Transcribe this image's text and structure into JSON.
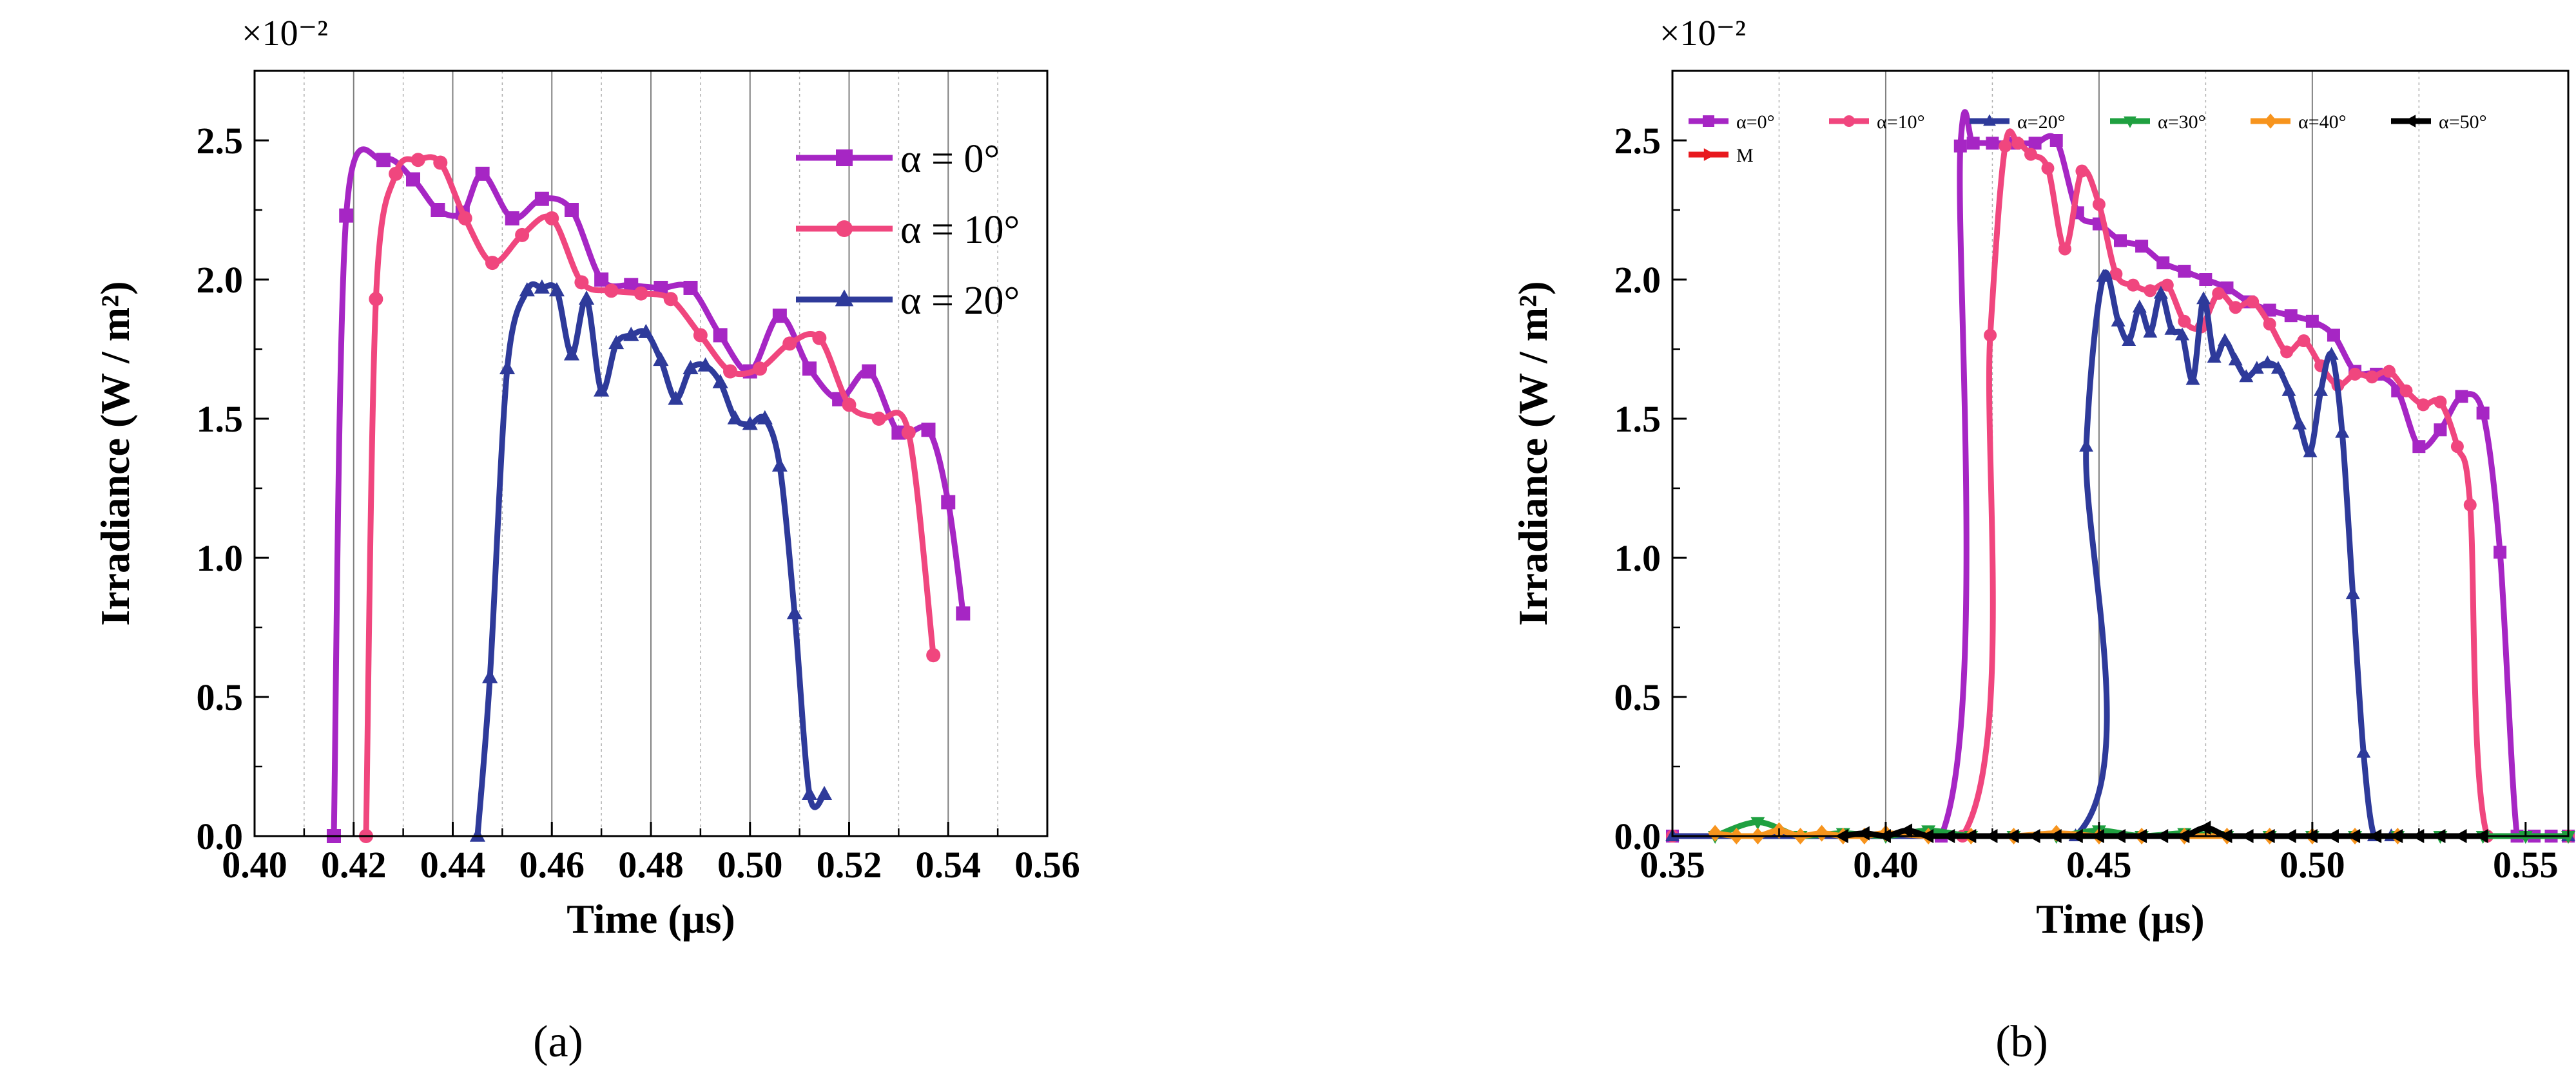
{
  "figure": {
    "caption_a": "(a)",
    "caption_b": "(b)"
  },
  "chart_data": [
    {
      "id": "a",
      "type": "line",
      "title": "",
      "xlabel": "Time (µs)",
      "ylabel": "Irradiance (W / m²)",
      "y_multiplier": "×10⁻²",
      "xlim": [
        0.4,
        0.56
      ],
      "ylim": [
        0,
        2.75
      ],
      "xticks": [
        "0.40",
        "0.42",
        "0.44",
        "0.46",
        "0.48",
        "0.50",
        "0.52",
        "0.54",
        "0.56"
      ],
      "yticks": [
        "0.0",
        "0.5",
        "1.0",
        "1.5",
        "2.0",
        "2.5"
      ],
      "grid": "vertical",
      "legend_position": "top-right",
      "series": [
        {
          "name": "α = 0°",
          "color": "#a626c4",
          "marker": "square",
          "x": [
            0.416,
            0.4185,
            0.426,
            0.432,
            0.437,
            0.442,
            0.446,
            0.452,
            0.458,
            0.464,
            0.47,
            0.476,
            0.482,
            0.488,
            0.494,
            0.5,
            0.506,
            0.512,
            0.518,
            0.524,
            0.53,
            0.536,
            0.54,
            0.543
          ],
          "values": [
            0.0,
            2.23,
            2.43,
            2.36,
            2.25,
            2.24,
            2.38,
            2.22,
            2.29,
            2.25,
            2.0,
            1.98,
            1.97,
            1.97,
            1.8,
            1.67,
            1.87,
            1.68,
            1.57,
            1.67,
            1.45,
            1.46,
            1.2,
            0.8
          ]
        },
        {
          "name": "α = 10°",
          "color": "#f0467e",
          "marker": "circle",
          "x": [
            0.4225,
            0.4245,
            0.4285,
            0.433,
            0.4375,
            0.4425,
            0.448,
            0.454,
            0.46,
            0.466,
            0.472,
            0.478,
            0.484,
            0.49,
            0.496,
            0.502,
            0.508,
            0.514,
            0.52,
            0.526,
            0.532,
            0.537
          ],
          "values": [
            0.0,
            1.93,
            2.38,
            2.43,
            2.42,
            2.22,
            2.06,
            2.16,
            2.22,
            1.99,
            1.96,
            1.95,
            1.93,
            1.8,
            1.67,
            1.68,
            1.77,
            1.79,
            1.55,
            1.5,
            1.45,
            0.65
          ]
        },
        {
          "name": "α = 20°",
          "color": "#2e3a9a",
          "marker": "triangle",
          "x": [
            0.445,
            0.4475,
            0.451,
            0.455,
            0.458,
            0.461,
            0.464,
            0.467,
            0.47,
            0.473,
            0.476,
            0.479,
            0.482,
            0.485,
            0.488,
            0.491,
            0.494,
            0.497,
            0.5,
            0.503,
            0.506,
            0.509,
            0.512,
            0.515
          ],
          "values": [
            0.0,
            0.57,
            1.68,
            1.96,
            1.97,
            1.96,
            1.73,
            1.93,
            1.6,
            1.77,
            1.8,
            1.81,
            1.71,
            1.57,
            1.68,
            1.69,
            1.63,
            1.5,
            1.48,
            1.5,
            1.33,
            0.8,
            0.15,
            0.15
          ]
        }
      ]
    },
    {
      "id": "b",
      "type": "line",
      "title": "",
      "xlabel": "Time (µs)",
      "ylabel": "Irradiance (W / m²)",
      "y_multiplier": "×10⁻²",
      "xlim": [
        0.35,
        0.56
      ],
      "ylim": [
        0,
        2.75
      ],
      "xticks": [
        "0.35",
        "0.40",
        "0.45",
        "0.50",
        "0.55"
      ],
      "yticks": [
        "0.0",
        "0.5",
        "1.0",
        "1.5",
        "2.0",
        "2.5"
      ],
      "grid": "vertical",
      "legend_position": "top",
      "series": [
        {
          "name": "α=0°",
          "color": "#a626c4",
          "marker": "square",
          "x": [
            0.35,
            0.413,
            0.4175,
            0.4205,
            0.425,
            0.43,
            0.435,
            0.44,
            0.445,
            0.45,
            0.455,
            0.46,
            0.465,
            0.47,
            0.475,
            0.48,
            0.485,
            0.49,
            0.495,
            0.5,
            0.505,
            0.51,
            0.515,
            0.52,
            0.525,
            0.53,
            0.535,
            0.54,
            0.544,
            0.548,
            0.552,
            0.556,
            0.56
          ],
          "values": [
            0.0,
            0.0,
            2.48,
            2.49,
            2.49,
            2.49,
            2.49,
            2.5,
            2.24,
            2.2,
            2.14,
            2.12,
            2.06,
            2.03,
            2.0,
            1.97,
            1.92,
            1.89,
            1.87,
            1.85,
            1.8,
            1.67,
            1.66,
            1.6,
            1.4,
            1.46,
            1.58,
            1.52,
            1.02,
            0.0,
            0.0,
            0.0,
            0.0
          ]
        },
        {
          "name": "α=10°",
          "color": "#f0467e",
          "marker": "circle",
          "x": [
            0.35,
            0.418,
            0.4245,
            0.428,
            0.431,
            0.434,
            0.438,
            0.442,
            0.446,
            0.45,
            0.454,
            0.458,
            0.462,
            0.466,
            0.47,
            0.474,
            0.478,
            0.482,
            0.486,
            0.49,
            0.494,
            0.498,
            0.502,
            0.506,
            0.51,
            0.514,
            0.518,
            0.522,
            0.526,
            0.53,
            0.534,
            0.537,
            0.541,
            0.56
          ],
          "values": [
            0.0,
            0.0,
            1.8,
            2.48,
            2.49,
            2.45,
            2.4,
            2.11,
            2.39,
            2.27,
            2.02,
            1.98,
            1.96,
            1.98,
            1.85,
            1.83,
            1.95,
            1.9,
            1.92,
            1.84,
            1.74,
            1.78,
            1.69,
            1.62,
            1.66,
            1.65,
            1.67,
            1.6,
            1.55,
            1.56,
            1.4,
            1.19,
            0.0,
            0.0
          ]
        },
        {
          "name": "α=20°",
          "color": "#2e3a9a",
          "marker": "triangle",
          "x": [
            0.35,
            0.4445,
            0.447,
            0.451,
            0.4545,
            0.457,
            0.4595,
            0.462,
            0.4645,
            0.467,
            0.4695,
            0.472,
            0.4745,
            0.477,
            0.4795,
            0.482,
            0.4845,
            0.487,
            0.4895,
            0.492,
            0.4945,
            0.497,
            0.4995,
            0.502,
            0.5045,
            0.507,
            0.5095,
            0.512,
            0.5145,
            0.5185,
            0.56
          ],
          "values": [
            0.0,
            0.0,
            1.4,
            2.01,
            1.85,
            1.78,
            1.9,
            1.81,
            1.95,
            1.82,
            1.8,
            1.64,
            1.93,
            1.72,
            1.78,
            1.71,
            1.65,
            1.68,
            1.7,
            1.68,
            1.6,
            1.48,
            1.38,
            1.6,
            1.73,
            1.45,
            0.87,
            0.3,
            0.0,
            0.0,
            0.0
          ]
        },
        {
          "name": "α=30°",
          "color": "#1fa040",
          "marker": "triangle-down",
          "x": [
            0.36,
            0.37,
            0.38,
            0.39,
            0.4,
            0.41,
            0.42,
            0.43,
            0.44,
            0.45,
            0.46,
            0.47,
            0.48,
            0.49,
            0.5,
            0.51,
            0.52,
            0.53,
            0.54,
            0.55,
            0.56
          ],
          "values": [
            0.0,
            0.05,
            0.0,
            0.01,
            0.0,
            0.02,
            0.0,
            0.0,
            0.0,
            0.02,
            0.0,
            0.01,
            0.0,
            0.0,
            0.0,
            0.0,
            0.0,
            0.0,
            0.0,
            0.0,
            0.0
          ]
        },
        {
          "name": "α=40°",
          "color": "#f7941d",
          "marker": "diamond",
          "x": [
            0.36,
            0.365,
            0.37,
            0.375,
            0.38,
            0.385,
            0.39,
            0.395,
            0.4,
            0.41,
            0.42,
            0.43,
            0.44,
            0.45,
            0.46,
            0.47,
            0.48,
            0.49,
            0.5,
            0.51,
            0.52
          ],
          "values": [
            0.01,
            0.0,
            0.0,
            0.02,
            0.0,
            0.01,
            0.0,
            0.0,
            0.01,
            0.0,
            0.0,
            0.0,
            0.01,
            0.0,
            0.0,
            0.0,
            0.0,
            0.0,
            0.0,
            0.0,
            0.0
          ]
        },
        {
          "name": "α=50°",
          "color": "#000000",
          "marker": "triangle-left",
          "x": [
            0.39,
            0.395,
            0.4,
            0.405,
            0.41,
            0.415,
            0.42,
            0.425,
            0.43,
            0.435,
            0.44,
            0.445,
            0.45,
            0.455,
            0.46,
            0.465,
            0.47,
            0.475,
            0.48,
            0.485,
            0.49,
            0.495,
            0.5,
            0.505,
            0.51,
            0.515,
            0.52,
            0.525,
            0.53,
            0.535,
            0.54
          ],
          "values": [
            0.0,
            0.01,
            0.0,
            0.02,
            0.0,
            0.0,
            0.0,
            0.0,
            0.0,
            0.0,
            0.0,
            0.0,
            0.0,
            0.0,
            0.0,
            0.0,
            0.0,
            0.03,
            0.0,
            0.0,
            0.0,
            0.0,
            0.0,
            0.0,
            0.0,
            0.0,
            0.0,
            0.0,
            0.0,
            0.0,
            0.0
          ]
        },
        {
          "name": "M",
          "color": "#e8191e",
          "marker": "triangle-right",
          "x": [],
          "values": []
        }
      ]
    }
  ]
}
